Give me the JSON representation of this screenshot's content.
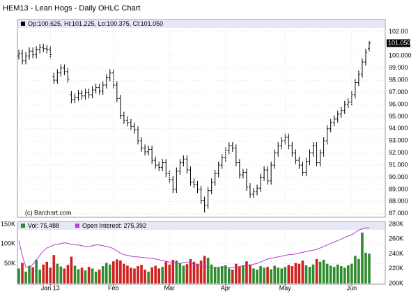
{
  "chart_data": [
    {
      "type": "ohlc",
      "title": "HEM13 - Lean Hogs - Daily OHLC Chart",
      "credit": "(c) Barchart.com",
      "series": [
        {
          "name": "Op:100.625, Hi:101.225, Lo:100.375, Cl:101.050",
          "color": "#000000",
          "open": [
            100.0,
            100.2,
            99.6,
            100.0,
            100.4,
            100.1,
            100.5,
            100.7,
            100.6,
            100.5,
            98.3,
            98.0,
            98.6,
            99.0,
            98.7,
            96.8,
            96.4,
            96.6,
            96.9,
            96.7,
            97.0,
            96.8,
            97.2,
            97.4,
            97.1,
            97.6,
            98.2,
            98.6,
            97.6,
            96.5,
            95.1,
            94.7,
            94.5,
            94.2,
            93.9,
            93.0,
            92.4,
            92.1,
            92.3,
            91.4,
            91.0,
            90.8,
            91.2,
            90.3,
            89.8,
            89.0,
            90.5,
            91.2,
            91.5,
            90.6,
            89.6,
            89.4,
            89.0,
            88.1,
            87.7,
            88.9,
            89.6,
            90.3,
            91.0,
            91.6,
            92.2,
            92.6,
            92.4,
            91.2,
            90.2,
            90.4,
            89.2,
            88.6,
            88.8,
            89.1,
            90.0,
            90.6,
            89.7,
            91.0,
            92.0,
            92.6,
            93.0,
            93.3,
            92.6,
            92.0,
            91.4,
            91.0,
            90.4,
            91.3,
            92.0,
            92.6,
            91.2,
            92.0,
            93.0,
            94.0,
            94.5,
            94.8,
            95.2,
            95.5,
            96.0,
            96.2,
            96.8,
            97.8,
            98.5,
            99.5,
            100.625
          ],
          "high": [
            100.5,
            100.5,
            100.3,
            100.7,
            100.7,
            100.8,
            101.0,
            101.0,
            100.9,
            100.8,
            98.6,
            98.9,
            99.3,
            99.3,
            99.0,
            97.1,
            96.9,
            97.2,
            97.2,
            97.3,
            97.3,
            97.5,
            97.7,
            97.7,
            97.9,
            98.5,
            98.9,
            98.9,
            97.9,
            96.8,
            95.4,
            95.0,
            94.8,
            94.5,
            94.2,
            93.3,
            92.7,
            92.6,
            92.6,
            91.7,
            91.3,
            91.5,
            91.5,
            90.6,
            90.1,
            90.8,
            91.5,
            91.8,
            91.8,
            90.9,
            89.9,
            89.7,
            89.3,
            88.4,
            89.2,
            89.9,
            90.6,
            91.3,
            91.9,
            92.5,
            92.9,
            92.9,
            92.7,
            91.5,
            90.7,
            90.7,
            89.5,
            89.1,
            89.4,
            90.3,
            90.9,
            90.9,
            91.3,
            92.3,
            92.9,
            93.3,
            93.6,
            93.6,
            92.9,
            92.3,
            91.7,
            91.3,
            91.6,
            92.3,
            92.9,
            92.9,
            92.3,
            93.3,
            94.3,
            94.8,
            95.1,
            95.5,
            95.8,
            96.3,
            96.5,
            97.1,
            98.1,
            98.8,
            99.8,
            100.6,
            101.225
          ],
          "low": [
            99.7,
            99.3,
            99.3,
            99.7,
            99.8,
            99.8,
            100.2,
            100.3,
            100.2,
            99.8,
            97.7,
            97.7,
            98.3,
            98.4,
            97.8,
            96.1,
            96.1,
            96.3,
            96.4,
            96.4,
            96.5,
            96.5,
            96.9,
            96.8,
            96.8,
            97.3,
            97.9,
            97.3,
            96.2,
            94.8,
            94.4,
            94.2,
            93.9,
            93.6,
            92.7,
            92.1,
            91.8,
            91.8,
            91.1,
            90.7,
            90.5,
            90.5,
            90.0,
            89.5,
            88.7,
            88.7,
            90.2,
            90.9,
            90.3,
            89.3,
            89.1,
            88.7,
            87.8,
            87.1,
            87.4,
            88.6,
            89.3,
            90.0,
            90.7,
            91.3,
            91.9,
            92.1,
            90.9,
            89.9,
            89.9,
            88.9,
            88.3,
            88.3,
            88.5,
            88.8,
            89.7,
            89.4,
            89.4,
            90.7,
            91.7,
            92.3,
            92.7,
            92.3,
            91.7,
            91.1,
            90.7,
            90.1,
            90.1,
            91.0,
            91.7,
            90.9,
            90.9,
            91.7,
            92.7,
            93.7,
            94.2,
            94.5,
            94.9,
            95.2,
            95.7,
            95.9,
            96.5,
            97.5,
            98.2,
            99.2,
            100.375
          ],
          "close": [
            100.2,
            99.6,
            100.0,
            100.4,
            100.1,
            100.5,
            100.7,
            100.6,
            100.5,
            100.1,
            98.0,
            98.6,
            99.0,
            98.7,
            98.1,
            96.4,
            96.6,
            96.9,
            96.7,
            97.0,
            96.8,
            97.2,
            97.4,
            97.1,
            97.6,
            98.2,
            98.6,
            97.6,
            96.5,
            95.1,
            94.7,
            94.5,
            94.2,
            93.9,
            93.0,
            92.4,
            92.1,
            92.3,
            91.4,
            91.0,
            90.8,
            91.2,
            90.3,
            89.8,
            89.0,
            90.5,
            91.2,
            91.5,
            90.6,
            89.6,
            89.4,
            89.0,
            88.1,
            87.7,
            88.9,
            89.6,
            90.3,
            91.0,
            91.6,
            92.2,
            92.6,
            92.4,
            91.2,
            90.2,
            90.4,
            89.2,
            88.6,
            88.8,
            89.1,
            90.0,
            90.6,
            89.7,
            91.0,
            92.0,
            92.6,
            93.0,
            93.3,
            92.6,
            92.0,
            91.4,
            91.0,
            90.4,
            91.3,
            92.0,
            92.6,
            91.2,
            92.0,
            93.0,
            94.0,
            94.5,
            94.8,
            95.2,
            95.5,
            96.0,
            96.2,
            96.8,
            97.8,
            98.5,
            99.5,
            100.3,
            101.05
          ]
        }
      ],
      "last_label": {
        "value": 101.05,
        "label": "101.050"
      },
      "ylim": [
        86.7,
        103.0
      ],
      "yticks": [
        {
          "value": 87,
          "label": "87.000"
        },
        {
          "value": 88,
          "label": "88.000"
        },
        {
          "value": 89,
          "label": "89.000"
        },
        {
          "value": 90,
          "label": "90.000"
        },
        {
          "value": 91,
          "label": "91.000"
        },
        {
          "value": 92,
          "label": "92.000"
        },
        {
          "value": 93,
          "label": "93.000"
        },
        {
          "value": 94,
          "label": "94.000"
        },
        {
          "value": 95,
          "label": "95.000"
        },
        {
          "value": 96,
          "label": "96.000"
        },
        {
          "value": 97,
          "label": "97.000"
        },
        {
          "value": 98,
          "label": "98.000"
        },
        {
          "value": 99,
          "label": "99.000"
        },
        {
          "value": 100,
          "label": "100.000"
        },
        {
          "value": 102,
          "label": "102.00"
        }
      ],
      "grid": true
    },
    {
      "type": "volume",
      "categories": [
        null,
        null,
        null,
        null,
        null,
        null,
        null,
        null,
        null,
        "Jan 13",
        null,
        null,
        null,
        null,
        null,
        null,
        null,
        null,
        null,
        null,
        null,
        null,
        null,
        null,
        null,
        null,
        null,
        "Feb",
        null,
        null,
        null,
        null,
        null,
        null,
        null,
        null,
        null,
        null,
        null,
        null,
        null,
        null,
        null,
        "Mar",
        null,
        null,
        null,
        null,
        null,
        null,
        null,
        null,
        null,
        null,
        null,
        null,
        null,
        null,
        null,
        "Apr",
        null,
        null,
        null,
        null,
        null,
        null,
        null,
        null,
        null,
        null,
        null,
        null,
        null,
        null,
        null,
        null,
        "May",
        null,
        null,
        null,
        null,
        null,
        null,
        null,
        null,
        null,
        null,
        null,
        null,
        null,
        null,
        null,
        null,
        null,
        null,
        "Jun",
        null,
        null,
        null,
        null,
        null
      ],
      "series": [
        {
          "name": "Vol: 75,488",
          "color": "#2e8b2e",
          "down_color": "#d02020",
          "values": [
            38000,
            52000,
            30000,
            45000,
            41000,
            60000,
            35000,
            48000,
            55000,
            40000,
            72000,
            50000,
            43000,
            38000,
            47000,
            68000,
            45000,
            36000,
            40000,
            33000,
            42000,
            38000,
            30000,
            35000,
            44000,
            52000,
            48000,
            56000,
            61000,
            58000,
            50000,
            45000,
            40000,
            38000,
            44000,
            47000,
            35000,
            30000,
            41000,
            45000,
            38000,
            42000,
            55000,
            48000,
            60000,
            58000,
            52000,
            45000,
            49000,
            62000,
            55000,
            50000,
            58000,
            70000,
            65000,
            48000,
            42000,
            40000,
            44000,
            46000,
            38000,
            35000,
            50000,
            42000,
            45000,
            56000,
            48000,
            38000,
            35000,
            44000,
            40000,
            42000,
            36000,
            45000,
            40000,
            38000,
            42000,
            47000,
            44000,
            52000,
            50000,
            58000,
            46000,
            42000,
            48000,
            62000,
            55000,
            60000,
            50000,
            45000,
            42000,
            48000,
            44000,
            40000,
            46000,
            50000,
            70000,
            62000,
            129000,
            78000,
            75488
          ]
        },
        {
          "name": "Open Interest: 275,392",
          "color": "#b040d0",
          "axis": "y2",
          "values": [
            258000,
            238000,
            222000,
            221000,
            226000,
            232000,
            238000,
            244000,
            248000,
            250000,
            252000,
            253000,
            254000,
            255000,
            254000,
            253000,
            252000,
            252000,
            251000,
            250000,
            250000,
            251000,
            252000,
            252000,
            251000,
            250000,
            249000,
            247000,
            244000,
            241000,
            239000,
            238000,
            237000,
            236000,
            236000,
            235000,
            235000,
            234000,
            234000,
            233000,
            232000,
            231000,
            230000,
            229000,
            228000,
            228000,
            227000,
            228000,
            229000,
            228000,
            226000,
            225000,
            224000,
            223000,
            222000,
            221000,
            221000,
            222000,
            222000,
            221000,
            221000,
            222000,
            222000,
            223000,
            224000,
            224000,
            225000,
            226000,
            227000,
            229000,
            231000,
            233000,
            234000,
            235000,
            236000,
            237000,
            238000,
            239000,
            239000,
            240000,
            241000,
            242000,
            243000,
            244000,
            245000,
            246000,
            248000,
            250000,
            252000,
            254000,
            256000,
            258000,
            260000,
            262000,
            264000,
            266000,
            269000,
            272000,
            274000,
            275000,
            275392
          ]
        }
      ],
      "ylim": [
        0,
        150000
      ],
      "yticks": [
        {
          "value": 50000,
          "label": "50K"
        },
        {
          "value": 100000,
          "label": "100K"
        },
        {
          "value": 150000,
          "label": "150K"
        }
      ],
      "y2lim": [
        200000,
        280000
      ],
      "y2ticks": [
        {
          "value": 200000,
          "label": "200K"
        },
        {
          "value": 220000,
          "label": "220K"
        },
        {
          "value": 240000,
          "label": "240K"
        },
        {
          "value": 260000,
          "label": "260K"
        },
        {
          "value": 280000,
          "label": "280K"
        }
      ],
      "grid": true
    }
  ]
}
